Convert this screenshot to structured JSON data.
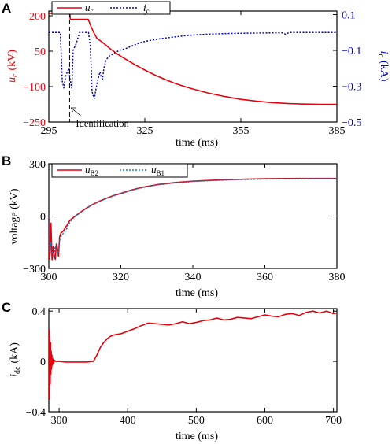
{
  "chart_data": [
    {
      "panel": "A",
      "type": "line",
      "xlabel": "time (ms)",
      "xlim": [
        295,
        385
      ],
      "xticks": [
        295,
        325,
        355,
        385
      ],
      "ylabel_left": "u_c (kV)",
      "ylabel_left_main": "u",
      "ylabel_left_sub": "c",
      "ylabel_left_unit": "(kV)",
      "ylim_left": [
        -250,
        220
      ],
      "yticks_left": [
        -250,
        -100,
        50,
        200
      ],
      "ylabel_right": "i_c (kA)",
      "ylabel_right_main": "i",
      "ylabel_right_sub": "c",
      "ylabel_right_unit": "(kA)",
      "ylim_right": [
        -0.5,
        0.12
      ],
      "yticks_right": [
        -0.5,
        -0.3,
        -0.1,
        0.1
      ],
      "left_axis_color": "#e8000b",
      "right_axis_color": "#0000cc",
      "legend_position": "top-left",
      "annotation": "Identification",
      "annotation_x": 301.5,
      "series": [
        {
          "name": "u_c",
          "label_main": "u",
          "label_sub": "c",
          "axis": "left",
          "color": "#e8000b",
          "dash": "solid",
          "x": [
            295,
            301.6,
            301.7,
            307.3,
            308,
            309,
            310,
            312,
            314,
            316,
            318,
            320,
            322,
            325,
            328,
            331,
            334,
            337,
            340,
            345,
            350,
            355,
            360,
            365,
            370,
            375,
            380,
            385
          ],
          "y": [
            210,
            210,
            185,
            185,
            160,
            130,
            105,
            85,
            62,
            42,
            24,
            8,
            -8,
            -30,
            -50,
            -68,
            -84,
            -98,
            -110,
            -128,
            -142,
            -154,
            -162,
            -168,
            -172,
            -174,
            -175,
            -175
          ]
        },
        {
          "name": "i_c",
          "label_main": "i",
          "label_sub": "c",
          "axis": "right",
          "color": "#0000cc",
          "dash": "dotted",
          "x": [
            295,
            298.6,
            299.2,
            299.7,
            300.3,
            301.3,
            301.6,
            302.2,
            302.6,
            303.6,
            304.6,
            305.6,
            306.6,
            307.4,
            308.0,
            308.5,
            309.2,
            310.1,
            311.0,
            311.4,
            311.8,
            312.2,
            313.0,
            314.0,
            315,
            316,
            317,
            319,
            321,
            323,
            325,
            328,
            331,
            334,
            337,
            340,
            345,
            350,
            355,
            360,
            365,
            368,
            369,
            370,
            375,
            380,
            385
          ],
          "y": [
            0.0,
            0.0,
            -0.27,
            -0.31,
            -0.24,
            -0.2,
            -0.26,
            -0.31,
            -0.1,
            -0.06,
            0.0,
            0.0,
            0.0,
            0.0,
            -0.08,
            -0.33,
            -0.37,
            -0.28,
            -0.22,
            -0.25,
            -0.26,
            -0.2,
            -0.15,
            -0.13,
            -0.12,
            -0.11,
            -0.1,
            -0.09,
            -0.075,
            -0.06,
            -0.05,
            -0.04,
            -0.032,
            -0.025,
            -0.019,
            -0.014,
            -0.009,
            -0.006,
            -0.004,
            -0.003,
            -0.002,
            -0.002,
            -0.01,
            0.0,
            0.0,
            0.0,
            0.0
          ]
        }
      ]
    },
    {
      "panel": "B",
      "type": "line",
      "xlabel": "time (ms)",
      "xlim": [
        300,
        380
      ],
      "xticks": [
        300,
        320,
        340,
        360,
        380
      ],
      "ylabel": "voltage (kV)",
      "ylim": [
        -300,
        300
      ],
      "yticks": [
        -300,
        0,
        300
      ],
      "legend_position": "top-left",
      "series": [
        {
          "name": "u_B2",
          "label_main": "u",
          "label_sub": "B2",
          "color": "#e8000b",
          "dash": "solid",
          "x": [
            300,
            300.2,
            300.4,
            300.6,
            300.9,
            301.2,
            301.5,
            301.8,
            302.1,
            302.4,
            302.7,
            303.0,
            303.4,
            303.8,
            304.2,
            304.6,
            305,
            305.5,
            306,
            307,
            308,
            310,
            312,
            314,
            316,
            318,
            320,
            323,
            326,
            330,
            335,
            340,
            345,
            350,
            355,
            360,
            365,
            370,
            375,
            380
          ],
          "y": [
            0,
            -245,
            -210,
            -40,
            -250,
            -175,
            -225,
            -248,
            -160,
            -185,
            -230,
            -120,
            -95,
            -90,
            -80,
            -65,
            -55,
            -35,
            -22,
            -5,
            10,
            40,
            65,
            85,
            102,
            118,
            130,
            150,
            165,
            180,
            192,
            200,
            205,
            209,
            212,
            214,
            215,
            216,
            216,
            216
          ]
        },
        {
          "name": "u_B1",
          "label_main": "u",
          "label_sub": "B1",
          "color": "#1f77b4",
          "dash": "dotted",
          "x": [
            300,
            300.3,
            300.6,
            301.0,
            301.4,
            301.8,
            302.2,
            302.6,
            303.0,
            303.5,
            304,
            304.5,
            305,
            305.5,
            306,
            307,
            308,
            310,
            312,
            314,
            316,
            318,
            320,
            323,
            326,
            330,
            335,
            340,
            345,
            350,
            355,
            360,
            365,
            370,
            375,
            380
          ],
          "y": [
            0,
            -210,
            -150,
            -210,
            -240,
            -170,
            -200,
            -215,
            -140,
            -110,
            -100,
            -88,
            -72,
            -50,
            -30,
            -8,
            8,
            38,
            63,
            83,
            100,
            116,
            128,
            148,
            163,
            178,
            190,
            198,
            203,
            207,
            210,
            212,
            213,
            214,
            215,
            215
          ]
        }
      ]
    },
    {
      "panel": "C",
      "type": "line",
      "xlabel": "time (ms)",
      "xlim": [
        285,
        705
      ],
      "xticks": [
        300,
        400,
        500,
        600,
        700
      ],
      "ylabel": "i_dc (kA)",
      "ylabel_main": "i",
      "ylabel_sub": "dc",
      "ylabel_unit": "(kA)",
      "ylim": [
        -0.4,
        0.42
      ],
      "yticks": [
        -0.4,
        0,
        0.4
      ],
      "series": [
        {
          "name": "i_dc",
          "color": "#e8000b",
          "dash": "solid",
          "x": [
            285,
            285.5,
            286,
            286.5,
            287,
            287.5,
            288,
            288.5,
            289,
            289.5,
            290,
            291,
            292,
            293,
            294,
            295,
            297,
            300,
            310,
            320,
            330,
            340,
            350,
            355,
            360,
            365,
            370,
            375,
            380,
            390,
            400,
            410,
            420,
            430,
            440,
            450,
            460,
            470,
            480,
            490,
            500,
            510,
            520,
            530,
            540,
            550,
            560,
            570,
            580,
            590,
            600,
            610,
            620,
            630,
            640,
            650,
            660,
            670,
            680,
            690,
            700,
            705
          ],
          "y": [
            -0.05,
            0.25,
            -0.3,
            0.2,
            -0.18,
            0.15,
            -0.1,
            0.08,
            -0.06,
            0.05,
            -0.03,
            0.02,
            -0.02,
            0.01,
            0.005,
            0.0,
            0.0,
            0.0,
            -0.005,
            -0.005,
            -0.005,
            -0.005,
            0.0,
            0.05,
            0.11,
            0.15,
            0.18,
            0.2,
            0.21,
            0.22,
            0.24,
            0.26,
            0.285,
            0.305,
            0.3,
            0.295,
            0.29,
            0.3,
            0.315,
            0.3,
            0.31,
            0.325,
            0.33,
            0.345,
            0.33,
            0.335,
            0.35,
            0.345,
            0.34,
            0.355,
            0.37,
            0.36,
            0.355,
            0.375,
            0.38,
            0.365,
            0.39,
            0.4,
            0.385,
            0.4,
            0.38,
            0.385
          ]
        }
      ]
    }
  ]
}
